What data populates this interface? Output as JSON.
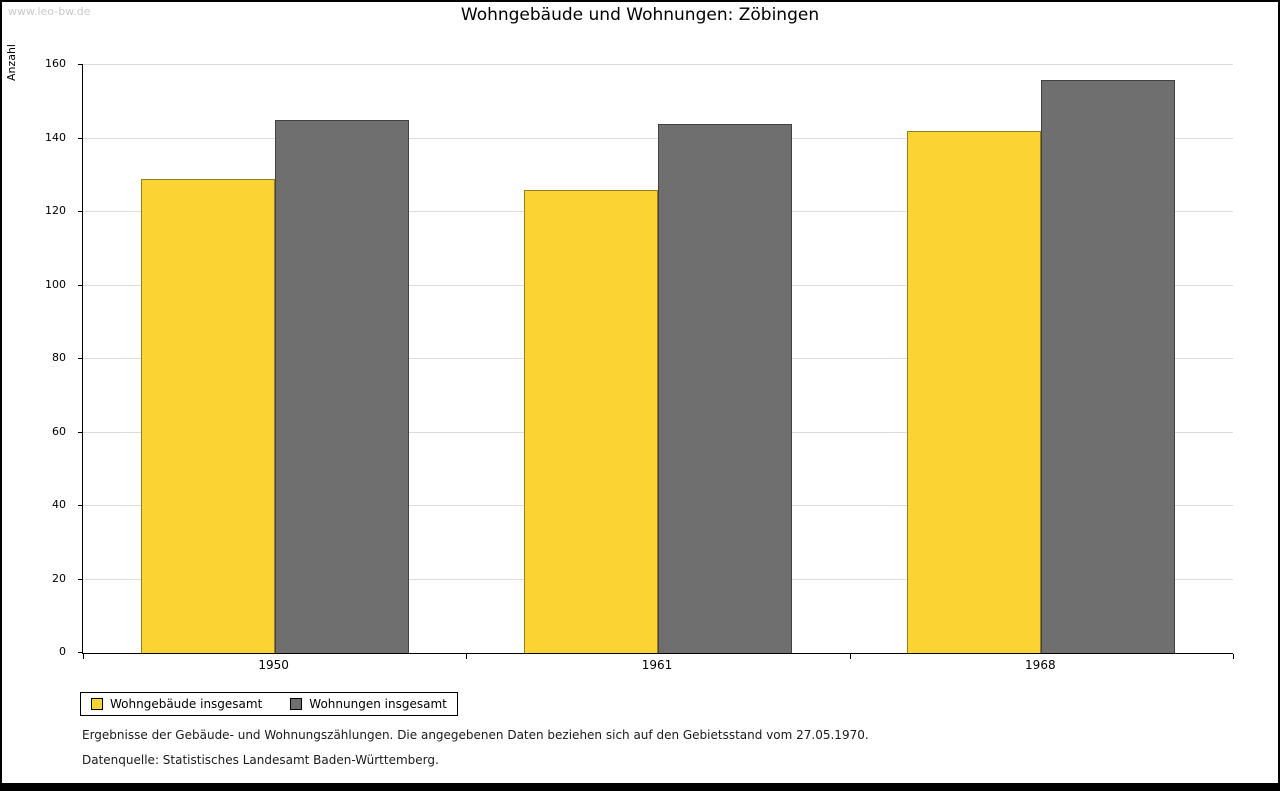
{
  "page": {
    "watermark": "www.leo-bw.de",
    "footnote1": "Ergebnisse der Gebäude- und Wohnungszählungen. Die angegebenen Daten beziehen sich auf den Gebietsstand vom 27.05.1970.",
    "footnote2": "Datenquelle: Statistisches Landesamt Baden-Württemberg."
  },
  "chart_data": {
    "type": "bar",
    "title": "Wohngebäude und Wohnungen: Zöbingen",
    "xlabel": "",
    "ylabel": "Anzahl",
    "categories": [
      "1950",
      "1961",
      "1968"
    ],
    "series": [
      {
        "name": "Wohngebäude insgesamt",
        "color": "#FBD433",
        "values": [
          129,
          126,
          142
        ]
      },
      {
        "name": "Wohnungen insgesamt",
        "color": "#6F6F6F",
        "values": [
          145,
          144,
          156
        ]
      }
    ],
    "ylim": [
      0,
      160
    ],
    "ytick_step": 20,
    "grid": true,
    "legend_position": "bottom-left"
  }
}
